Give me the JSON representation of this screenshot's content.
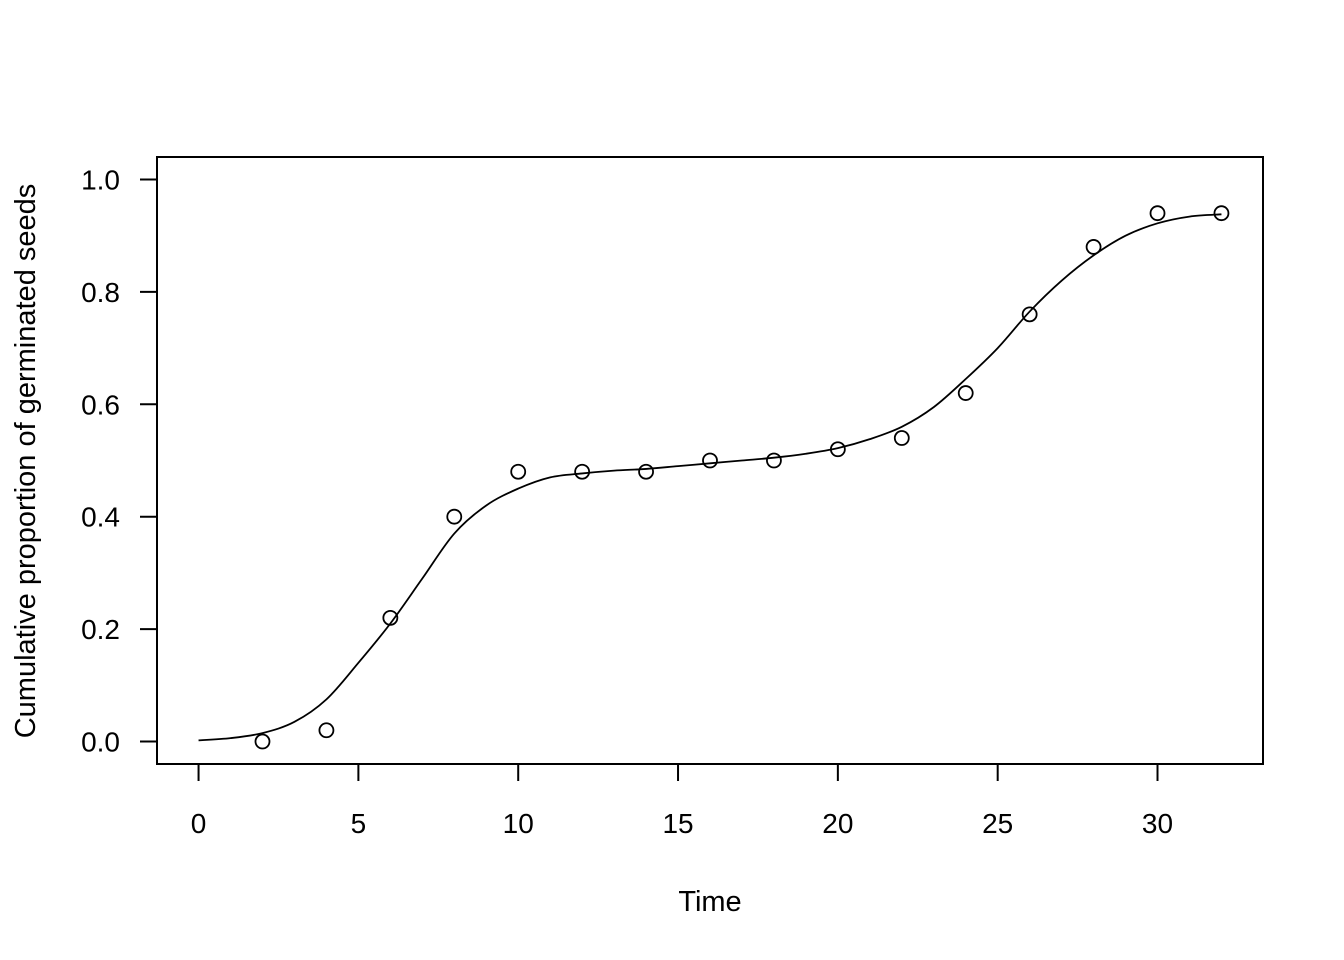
{
  "chart_data": {
    "type": "scatter",
    "title": "",
    "xlabel": "Time",
    "ylabel": "Cumulative proportion of germinated seeds",
    "xlim": [
      -1.3,
      33.3
    ],
    "ylim": [
      -0.04,
      1.04
    ],
    "x_ticks": [
      0,
      5,
      10,
      15,
      20,
      25,
      30
    ],
    "y_ticks": [
      0.0,
      0.2,
      0.4,
      0.6,
      0.8,
      1.0
    ],
    "x_tick_labels": [
      "0",
      "5",
      "10",
      "15",
      "20",
      "25",
      "30"
    ],
    "y_tick_labels": [
      "0.0",
      "0.2",
      "0.4",
      "0.6",
      "0.8",
      "1.0"
    ],
    "grid": false,
    "legend": "none",
    "points": {
      "x": [
        2,
        4,
        6,
        8,
        10,
        12,
        14,
        16,
        18,
        20,
        22,
        24,
        26,
        28,
        30,
        32
      ],
      "y": [
        0.0,
        0.02,
        0.22,
        0.4,
        0.48,
        0.48,
        0.48,
        0.5,
        0.5,
        0.52,
        0.54,
        0.62,
        0.76,
        0.88,
        0.94,
        0.94
      ]
    },
    "fitted_curve": {
      "x": [
        0,
        1,
        2,
        3,
        4,
        5,
        6,
        7,
        8,
        9,
        10,
        11,
        12,
        13,
        14,
        15,
        16,
        17,
        18,
        19,
        20,
        21,
        22,
        23,
        24,
        25,
        26,
        27,
        28,
        29,
        30,
        31,
        32
      ],
      "y": [
        0.002,
        0.006,
        0.015,
        0.035,
        0.075,
        0.14,
        0.21,
        0.29,
        0.37,
        0.42,
        0.45,
        0.47,
        0.477,
        0.482,
        0.485,
        0.49,
        0.495,
        0.5,
        0.505,
        0.512,
        0.522,
        0.538,
        0.56,
        0.595,
        0.645,
        0.7,
        0.765,
        0.82,
        0.865,
        0.9,
        0.922,
        0.934,
        0.938
      ]
    }
  }
}
